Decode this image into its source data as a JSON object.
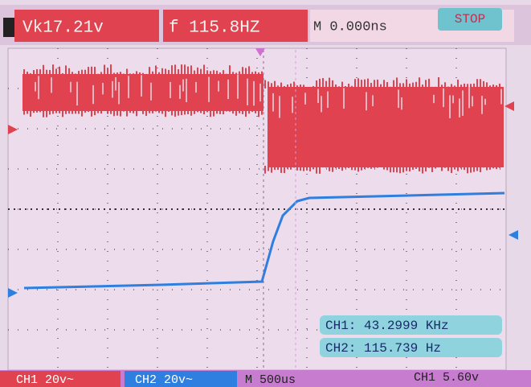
{
  "status_bar": {
    "voltage": "Vk17.21v",
    "frequency": "f 115.8HZ",
    "timebase": "M 0.000ns",
    "state": "STOP"
  },
  "measurements": {
    "ch1": "CH1: 43.2999 KHz",
    "ch2": "CH2: 115.739 Hz"
  },
  "bottom_bar": {
    "ch1_scale": "CH1 20v~",
    "ch2_scale": "CH2 20v~",
    "time_scale": "M 500us",
    "trigger": "CH1 5.60v"
  }
}
